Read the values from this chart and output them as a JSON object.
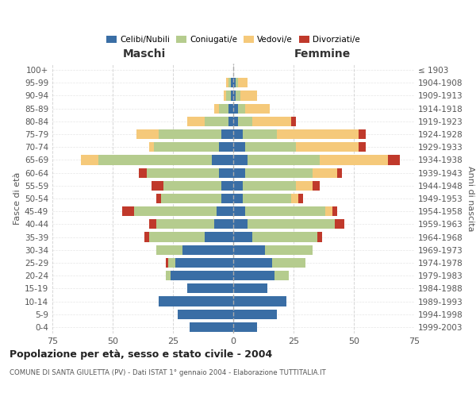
{
  "age_groups": [
    "0-4",
    "5-9",
    "10-14",
    "15-19",
    "20-24",
    "25-29",
    "30-34",
    "35-39",
    "40-44",
    "45-49",
    "50-54",
    "55-59",
    "60-64",
    "65-69",
    "70-74",
    "75-79",
    "80-84",
    "85-89",
    "90-94",
    "95-99",
    "100+"
  ],
  "birth_years": [
    "1999-2003",
    "1994-1998",
    "1989-1993",
    "1984-1988",
    "1979-1983",
    "1974-1978",
    "1969-1973",
    "1964-1968",
    "1959-1963",
    "1954-1958",
    "1949-1953",
    "1944-1948",
    "1939-1943",
    "1934-1938",
    "1929-1933",
    "1924-1928",
    "1919-1923",
    "1914-1918",
    "1909-1913",
    "1904-1908",
    "≤ 1903"
  ],
  "males": {
    "celibi": [
      18,
      23,
      31,
      19,
      26,
      24,
      21,
      12,
      8,
      7,
      5,
      5,
      6,
      9,
      6,
      5,
      2,
      2,
      1,
      1,
      0
    ],
    "coniugati": [
      0,
      0,
      0,
      0,
      2,
      3,
      11,
      23,
      24,
      34,
      25,
      24,
      30,
      47,
      27,
      26,
      10,
      4,
      2,
      1,
      0
    ],
    "vedovi": [
      0,
      0,
      0,
      0,
      0,
      0,
      0,
      0,
      0,
      0,
      0,
      0,
      0,
      7,
      2,
      9,
      7,
      2,
      1,
      1,
      0
    ],
    "divorziati": [
      0,
      0,
      0,
      0,
      0,
      1,
      0,
      2,
      3,
      5,
      2,
      5,
      3,
      0,
      0,
      0,
      0,
      0,
      0,
      0,
      0
    ]
  },
  "females": {
    "nubili": [
      10,
      18,
      22,
      14,
      17,
      16,
      13,
      8,
      6,
      5,
      4,
      4,
      5,
      6,
      5,
      4,
      2,
      2,
      1,
      1,
      0
    ],
    "coniugate": [
      0,
      0,
      0,
      0,
      6,
      14,
      20,
      27,
      36,
      33,
      20,
      22,
      28,
      30,
      21,
      14,
      6,
      3,
      2,
      1,
      0
    ],
    "vedove": [
      0,
      0,
      0,
      0,
      0,
      0,
      0,
      0,
      0,
      3,
      3,
      7,
      10,
      28,
      26,
      34,
      16,
      10,
      7,
      4,
      0
    ],
    "divorziate": [
      0,
      0,
      0,
      0,
      0,
      0,
      0,
      2,
      4,
      2,
      2,
      3,
      2,
      5,
      3,
      3,
      2,
      0,
      0,
      0,
      0
    ]
  },
  "colors": {
    "celibi": "#3a6ea5",
    "coniugati": "#b5cc8e",
    "vedovi": "#f5c97a",
    "divorziati": "#c0392b"
  },
  "xlim": 75,
  "title": "Popolazione per età, sesso e stato civile - 2004",
  "subtitle": "COMUNE DI SANTA GIULETTA (PV) - Dati ISTAT 1° gennaio 2004 - Elaborazione TUTTITALIA.IT",
  "ylabel_left": "Fasce di età",
  "ylabel_right": "Anni di nascita",
  "xlabel_male": "Maschi",
  "xlabel_female": "Femmine",
  "bg_color": "#ffffff",
  "grid_color": "#cccccc",
  "bar_height": 0.75
}
